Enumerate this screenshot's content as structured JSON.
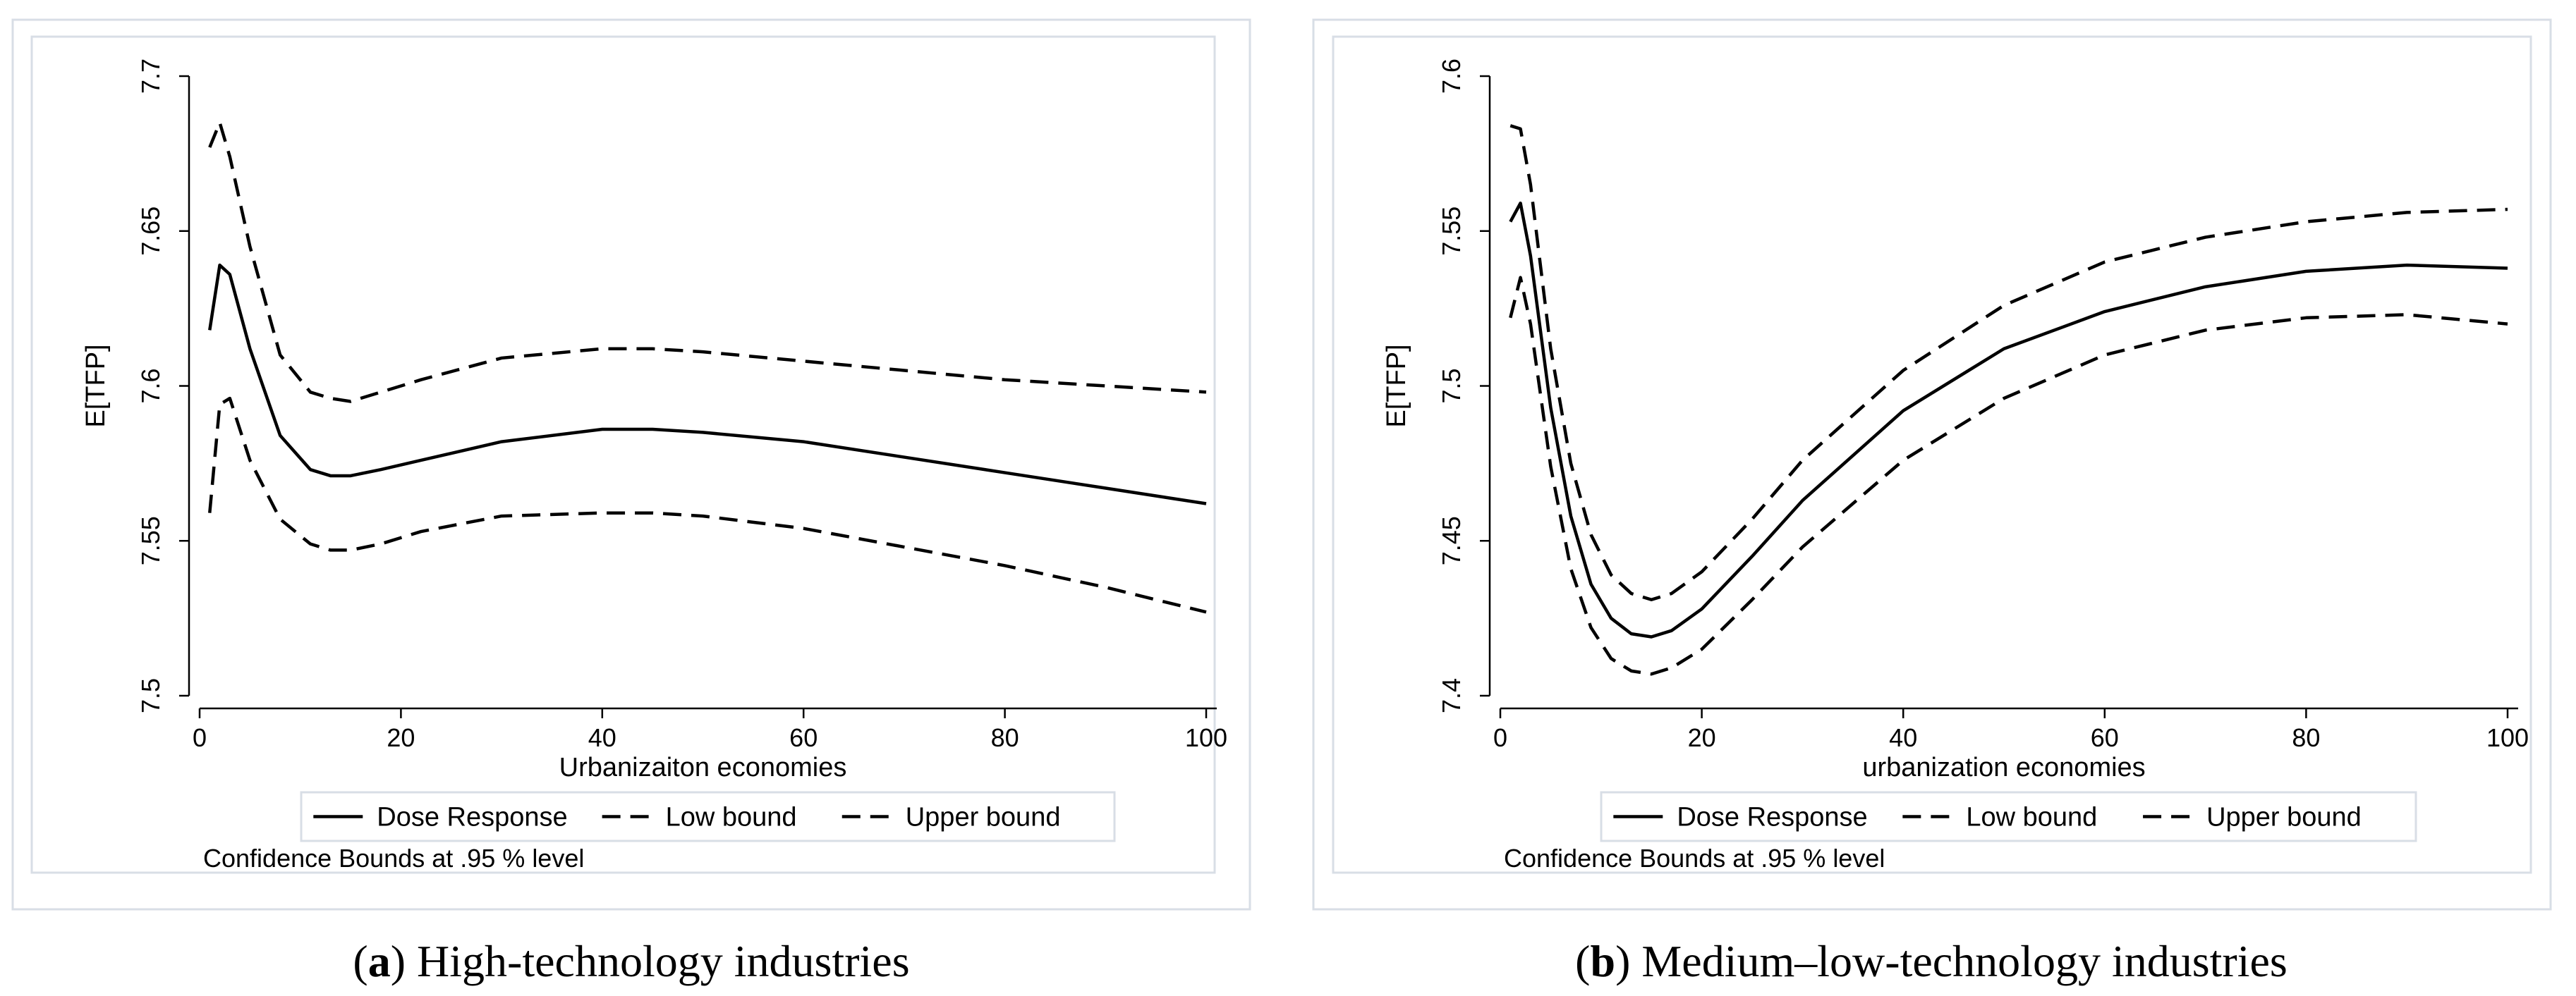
{
  "chart_data": [
    {
      "type": "line",
      "caption_letter": "a",
      "caption_text": "High-technology industries",
      "title": "",
      "xlabel": "Urbanizaiton economies",
      "ylabel": "E[TFP]",
      "xlim": [
        0,
        100
      ],
      "ylim": [
        7.5,
        7.7
      ],
      "xticks": [
        0,
        20,
        40,
        60,
        80,
        100
      ],
      "yticks": [
        7.5,
        7.55,
        7.6,
        7.65,
        7.7
      ],
      "xtick_labels": [
        "0",
        "20",
        "40",
        "60",
        "80",
        "100"
      ],
      "ytick_labels": [
        "7.5",
        "7.55",
        "7.6",
        "7.65",
        "7.7"
      ],
      "legend": [
        "Dose Response",
        "Low bound",
        "Upper bound"
      ],
      "note": "Confidence Bounds at .95 % level",
      "x": [
        1,
        2,
        3,
        5,
        8,
        11,
        13,
        15,
        18,
        22,
        30,
        40,
        45,
        50,
        60,
        70,
        80,
        90,
        100
      ],
      "series": [
        {
          "name": "Dose Response",
          "style": "solid",
          "values": [
            7.618,
            7.639,
            7.636,
            7.612,
            7.584,
            7.573,
            7.571,
            7.571,
            7.573,
            7.576,
            7.582,
            7.586,
            7.586,
            7.585,
            7.582,
            7.577,
            7.572,
            7.567,
            7.562
          ]
        },
        {
          "name": "Low bound",
          "style": "dashed",
          "values": [
            7.559,
            7.594,
            7.596,
            7.576,
            7.557,
            7.549,
            7.547,
            7.547,
            7.549,
            7.553,
            7.558,
            7.559,
            7.559,
            7.558,
            7.554,
            7.548,
            7.542,
            7.535,
            7.527
          ]
        },
        {
          "name": "Upper bound",
          "style": "dashed",
          "values": [
            7.677,
            7.685,
            7.674,
            7.645,
            7.61,
            7.598,
            7.596,
            7.595,
            7.598,
            7.602,
            7.609,
            7.612,
            7.612,
            7.611,
            7.608,
            7.605,
            7.602,
            7.6,
            7.598
          ]
        }
      ]
    },
    {
      "type": "line",
      "caption_letter": "b",
      "caption_text": "Medium–low-technology industries",
      "title": "",
      "xlabel": "urbanization economies",
      "ylabel": "E[TFP]",
      "xlim": [
        0,
        100
      ],
      "ylim": [
        7.4,
        7.6
      ],
      "xticks": [
        0,
        20,
        40,
        60,
        80,
        100
      ],
      "yticks": [
        7.4,
        7.45,
        7.5,
        7.55,
        7.6
      ],
      "xtick_labels": [
        "0",
        "20",
        "40",
        "60",
        "80",
        "100"
      ],
      "ytick_labels": [
        "7.4",
        "7.45",
        "7.5",
        "7.55",
        "7.6"
      ],
      "legend": [
        "Dose Response",
        "Low bound",
        "Upper bound"
      ],
      "note": "Confidence Bounds at .95 % level",
      "x": [
        1,
        2,
        3,
        5,
        7,
        9,
        11,
        13,
        15,
        17,
        20,
        25,
        30,
        40,
        50,
        60,
        70,
        80,
        90,
        100
      ],
      "series": [
        {
          "name": "Dose Response",
          "style": "solid",
          "values": [
            7.553,
            7.559,
            7.542,
            7.493,
            7.458,
            7.436,
            7.425,
            7.42,
            7.419,
            7.421,
            7.428,
            7.445,
            7.463,
            7.492,
            7.512,
            7.524,
            7.532,
            7.537,
            7.539,
            7.538
          ]
        },
        {
          "name": "Low bound",
          "style": "dashed",
          "values": [
            7.522,
            7.535,
            7.52,
            7.474,
            7.441,
            7.422,
            7.412,
            7.408,
            7.407,
            7.409,
            7.415,
            7.431,
            7.448,
            7.476,
            7.496,
            7.51,
            7.518,
            7.522,
            7.523,
            7.52
          ]
        },
        {
          "name": "Upper bound",
          "style": "dashed",
          "values": [
            7.584,
            7.583,
            7.565,
            7.512,
            7.475,
            7.452,
            7.439,
            7.433,
            7.431,
            7.433,
            7.44,
            7.457,
            7.476,
            7.505,
            7.526,
            7.54,
            7.548,
            7.553,
            7.556,
            7.557
          ]
        }
      ]
    }
  ]
}
